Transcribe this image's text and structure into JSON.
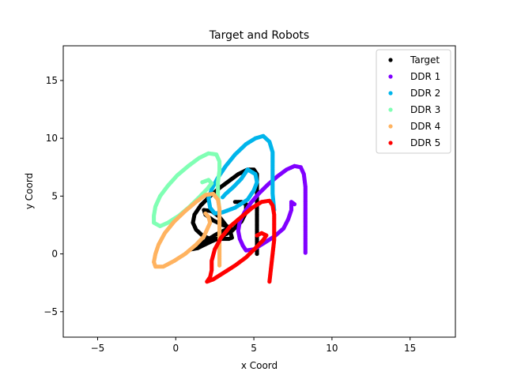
{
  "chart_data": {
    "type": "scatter",
    "title": "Target and Robots",
    "xlabel": "x Coord",
    "ylabel": "y Coord",
    "xlim": [
      -7.2,
      17.9
    ],
    "ylim": [
      -7.2,
      18.0
    ],
    "xticks": [
      -5,
      0,
      5,
      10,
      15
    ],
    "yticks": [
      -5,
      0,
      5,
      10,
      15
    ],
    "grid": false,
    "legend_position": "top-right",
    "series": [
      {
        "name": "Target",
        "color": "#000000",
        "points": [
          [
            5.2,
            0
          ],
          [
            5.2,
            2
          ],
          [
            5.2,
            4
          ],
          [
            5.2,
            6
          ],
          [
            5.2,
            6.9
          ],
          [
            5.0,
            7.3
          ],
          [
            4.6,
            7.3
          ],
          [
            4.0,
            6.9
          ],
          [
            3.4,
            6.3
          ],
          [
            2.8,
            5.7
          ],
          [
            2.2,
            5.0
          ],
          [
            1.6,
            4.2
          ],
          [
            1.2,
            3.4
          ],
          [
            1.1,
            2.7
          ],
          [
            1.3,
            2.1
          ],
          [
            1.7,
            1.6
          ],
          [
            2.2,
            1.3
          ],
          [
            2.8,
            1.3
          ],
          [
            3.4,
            1.3
          ],
          [
            3.6,
            1.4
          ],
          [
            3.5,
            1.9
          ],
          [
            3.2,
            2.5
          ],
          [
            2.8,
            3.2
          ],
          [
            2.3,
            3.7
          ],
          [
            1.8,
            3.8
          ],
          [
            1.9,
            3.4
          ],
          [
            2.4,
            2.9
          ],
          [
            3.0,
            2.5
          ],
          [
            3.5,
            2.3
          ],
          [
            3.2,
            2.1
          ],
          [
            2.6,
            1.7
          ],
          [
            2.0,
            1.2
          ],
          [
            1.4,
            0.7
          ],
          [
            1.0,
            0.4
          ],
          [
            1.4,
            0.5
          ],
          [
            2.0,
            0.9
          ],
          [
            2.8,
            1.4
          ],
          [
            3.6,
            2.0
          ],
          [
            4.2,
            2.8
          ],
          [
            4.5,
            3.6
          ],
          [
            4.5,
            4.3
          ],
          [
            4.2,
            4.5
          ],
          [
            3.8,
            4.5
          ]
        ]
      },
      {
        "name": "DDR 1",
        "color": "#8000ff",
        "points": [
          [
            8.3,
            0.1
          ],
          [
            8.3,
            1.5
          ],
          [
            8.3,
            3.0
          ],
          [
            8.3,
            4.5
          ],
          [
            8.3,
            5.8
          ],
          [
            8.2,
            6.9
          ],
          [
            8.0,
            7.5
          ],
          [
            7.6,
            7.6
          ],
          [
            7.1,
            7.3
          ],
          [
            6.5,
            6.7
          ],
          [
            5.9,
            6.0
          ],
          [
            5.3,
            5.2
          ],
          [
            4.8,
            4.4
          ],
          [
            4.4,
            3.6
          ],
          [
            4.1,
            2.8
          ],
          [
            4.0,
            2.0
          ],
          [
            4.1,
            1.3
          ],
          [
            4.3,
            0.7
          ],
          [
            4.5,
            0.3
          ],
          [
            5.0,
            0.4
          ],
          [
            5.6,
            0.9
          ],
          [
            6.3,
            1.5
          ],
          [
            6.9,
            2.2
          ],
          [
            7.2,
            3.0
          ],
          [
            7.4,
            3.8
          ],
          [
            7.4,
            4.5
          ],
          [
            7.6,
            4.3
          ]
        ]
      },
      {
        "name": "DDR 2",
        "color": "#00b5eb",
        "points": [
          [
            6.3,
            3.8
          ],
          [
            6.2,
            5.2
          ],
          [
            6.2,
            6.5
          ],
          [
            6.2,
            7.8
          ],
          [
            6.2,
            8.8
          ],
          [
            6.0,
            9.7
          ],
          [
            5.6,
            10.2
          ],
          [
            5.1,
            10.0
          ],
          [
            4.5,
            9.5
          ],
          [
            3.8,
            8.6
          ],
          [
            3.2,
            7.6
          ],
          [
            2.7,
            6.6
          ],
          [
            2.3,
            5.6
          ],
          [
            2.1,
            4.8
          ],
          [
            2.2,
            4.0
          ],
          [
            2.5,
            3.5
          ],
          [
            3.0,
            3.6
          ],
          [
            3.8,
            4.0
          ],
          [
            4.6,
            4.7
          ],
          [
            5.0,
            5.5
          ],
          [
            5.2,
            6.2
          ],
          [
            5.1,
            6.9
          ],
          [
            4.6,
            7.3
          ],
          [
            4.2,
            6.5
          ],
          [
            3.7,
            5.8
          ],
          [
            3.2,
            5.2
          ],
          [
            3.0,
            4.9
          ]
        ]
      },
      {
        "name": "DDR 3",
        "color": "#80ffb4",
        "points": [
          [
            2.8,
            3.8
          ],
          [
            2.7,
            5.0
          ],
          [
            2.7,
            6.2
          ],
          [
            2.8,
            7.2
          ],
          [
            2.8,
            8.0
          ],
          [
            2.6,
            8.6
          ],
          [
            2.1,
            8.7
          ],
          [
            1.5,
            8.3
          ],
          [
            0.8,
            7.6
          ],
          [
            0.1,
            6.8
          ],
          [
            -0.5,
            5.9
          ],
          [
            -1.0,
            5.0
          ],
          [
            -1.3,
            4.1
          ],
          [
            -1.4,
            3.3
          ],
          [
            -1.4,
            2.7
          ],
          [
            -1.0,
            2.4
          ],
          [
            -0.5,
            2.7
          ],
          [
            0.2,
            3.3
          ],
          [
            0.9,
            4.1
          ],
          [
            1.5,
            4.9
          ],
          [
            2.0,
            5.6
          ],
          [
            2.3,
            6.1
          ],
          [
            2.1,
            6.4
          ],
          [
            1.7,
            6.2
          ]
        ]
      },
      {
        "name": "DDR 4",
        "color": "#ffb360",
        "points": [
          [
            2.8,
            -1.0
          ],
          [
            2.8,
            0.3
          ],
          [
            2.8,
            1.6
          ],
          [
            2.8,
            2.8
          ],
          [
            2.8,
            3.9
          ],
          [
            2.7,
            4.7
          ],
          [
            2.4,
            5.2
          ],
          [
            1.9,
            5.1
          ],
          [
            1.3,
            4.5
          ],
          [
            0.6,
            3.7
          ],
          [
            -0.1,
            2.8
          ],
          [
            -0.7,
            1.8
          ],
          [
            -1.1,
            0.8
          ],
          [
            -1.3,
            0
          ],
          [
            -1.4,
            -0.7
          ],
          [
            -1.3,
            -1.1
          ],
          [
            -0.8,
            -1.1
          ],
          [
            -0.1,
            -0.6
          ],
          [
            0.6,
            0
          ],
          [
            1.3,
            0.8
          ],
          [
            1.8,
            1.5
          ],
          [
            2.0,
            2.1
          ],
          [
            2.2,
            2.7
          ],
          [
            2.1,
            3.2
          ],
          [
            1.9,
            3.5
          ]
        ]
      },
      {
        "name": "DDR 5",
        "color": "#ff0000",
        "points": [
          [
            6.0,
            -2.4
          ],
          [
            6.1,
            -1.2
          ],
          [
            6.2,
            0
          ],
          [
            6.3,
            1.2
          ],
          [
            6.3,
            2.4
          ],
          [
            6.3,
            3.4
          ],
          [
            6.2,
            4.2
          ],
          [
            6.0,
            4.6
          ],
          [
            5.5,
            4.5
          ],
          [
            4.9,
            4.0
          ],
          [
            4.2,
            3.2
          ],
          [
            3.5,
            2.4
          ],
          [
            2.9,
            1.4
          ],
          [
            2.5,
            0.4
          ],
          [
            2.3,
            -0.6
          ],
          [
            2.3,
            -1.4
          ],
          [
            2.2,
            -2.0
          ],
          [
            2.0,
            -2.4
          ],
          [
            2.4,
            -2.2
          ],
          [
            3.1,
            -1.6
          ],
          [
            3.8,
            -1.0
          ],
          [
            4.5,
            -0.3
          ],
          [
            5.1,
            0.5
          ],
          [
            5.6,
            1.2
          ],
          [
            5.8,
            1.6
          ],
          [
            5.5,
            1.8
          ],
          [
            5.2,
            1.6
          ]
        ]
      }
    ]
  }
}
